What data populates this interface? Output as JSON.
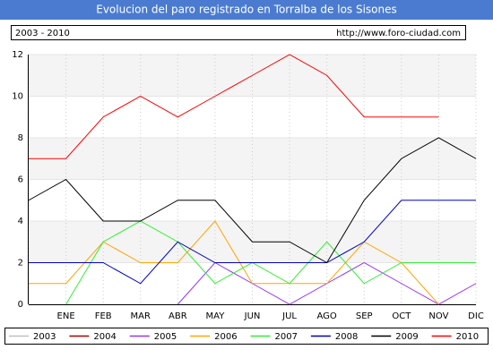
{
  "chart_data": {
    "type": "line",
    "title": "Evolucion del paro registrado en Torralba de los Sisones",
    "subtitle": "2003 - 2010",
    "source": "http://www.foro-ciudad.com",
    "categories": [
      null,
      "ENE",
      "FEB",
      "MAR",
      "ABR",
      "MAY",
      "JUN",
      "JUL",
      "AGO",
      "SEP",
      "OCT",
      "NOV",
      "DIC"
    ],
    "ylim": [
      0,
      12
    ],
    "yticks": [
      0,
      2,
      4,
      6,
      8,
      10,
      12
    ],
    "grid": true,
    "series": [
      {
        "name": "2003",
        "color": "#c0c0c0",
        "values": [
          null,
          null,
          null,
          null,
          null,
          null,
          null,
          null,
          null,
          null,
          null,
          null,
          null
        ]
      },
      {
        "name": "2004",
        "color": "#b00000",
        "values": [
          null,
          null,
          null,
          null,
          null,
          null,
          null,
          null,
          null,
          null,
          null,
          null,
          null
        ]
      },
      {
        "name": "2005",
        "color": "#9933ff",
        "values": [
          null,
          null,
          null,
          null,
          0,
          2,
          1,
          0,
          1,
          2,
          1,
          0,
          1
        ]
      },
      {
        "name": "2006",
        "color": "#ffa500",
        "values": [
          1,
          1,
          3,
          2,
          2,
          4,
          1,
          1,
          1,
          3,
          2,
          0,
          null
        ]
      },
      {
        "name": "2007",
        "color": "#33ee33",
        "values": [
          null,
          0,
          3,
          4,
          3,
          1,
          2,
          1,
          3,
          1,
          2,
          2,
          2
        ]
      },
      {
        "name": "2008",
        "color": "#0000cc",
        "values": [
          2,
          2,
          2,
          1,
          3,
          2,
          2,
          2,
          2,
          3,
          5,
          5,
          5
        ]
      },
      {
        "name": "2009",
        "color": "#000000",
        "values": [
          5,
          6,
          4,
          4,
          5,
          5,
          3,
          3,
          2,
          5,
          7,
          8,
          7
        ]
      },
      {
        "name": "2010",
        "color": "#ff0000",
        "values": [
          7,
          7,
          9,
          10,
          9,
          10,
          11,
          12,
          11,
          9,
          9,
          9,
          null
        ]
      }
    ]
  }
}
